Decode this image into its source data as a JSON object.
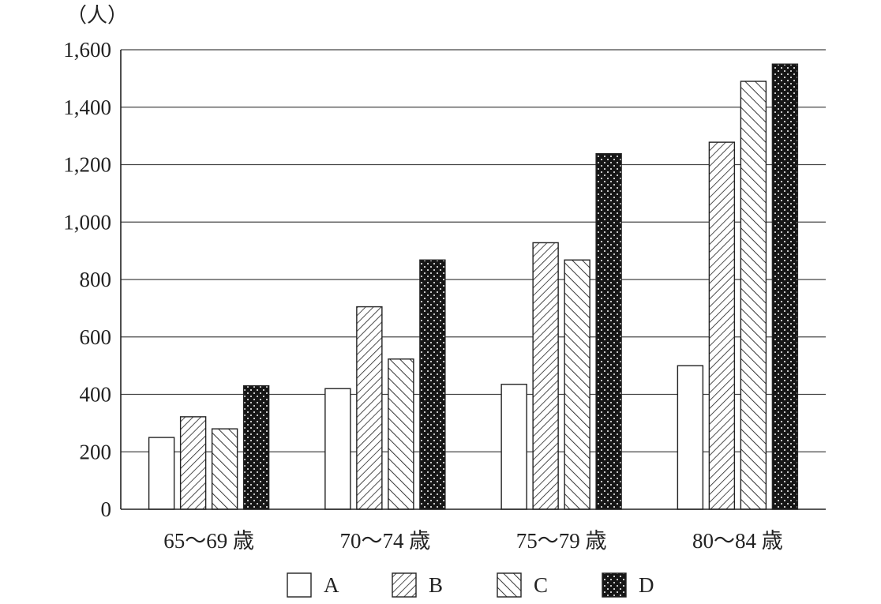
{
  "chart_data": {
    "type": "bar",
    "unit_label": "（人）",
    "categories": [
      "65〜69 歳",
      "70〜74 歳",
      "75〜79 歳",
      "80〜84 歳"
    ],
    "series": [
      {
        "name": "A",
        "pattern": "none",
        "values": [
          250,
          420,
          435,
          500
        ]
      },
      {
        "name": "B",
        "pattern": "backslash",
        "values": [
          322,
          705,
          928,
          1278
        ]
      },
      {
        "name": "C",
        "pattern": "slash",
        "values": [
          280,
          523,
          868,
          1490
        ]
      },
      {
        "name": "D",
        "pattern": "dots",
        "values": [
          430,
          868,
          1238,
          1550
        ]
      }
    ],
    "ylim": [
      0,
      1600
    ],
    "yticks": [
      0,
      200,
      400,
      600,
      800,
      1000,
      1200,
      1400,
      1600
    ],
    "ytick_labels": [
      "0",
      "200",
      "400",
      "600",
      "800",
      "1,000",
      "1,200",
      "1,400",
      "1,600"
    ],
    "grid": true,
    "legend_position": "bottom"
  }
}
